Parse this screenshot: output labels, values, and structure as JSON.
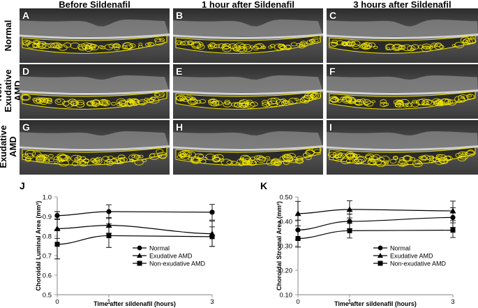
{
  "columns": [
    "Before Sildenafil",
    "1 hour after Sildenafil",
    "3 hours after Sildenafil"
  ],
  "rows": [
    "Normal",
    "Non-Exudative AMD",
    "Exudative AMD"
  ],
  "panel_letters": [
    "A",
    "B",
    "C",
    "D",
    "E",
    "F",
    "G",
    "H",
    "I"
  ],
  "colors": {
    "overlay": "#f2e600",
    "scan_background": "#1e1e1e",
    "retina_band": "#cfcfcf"
  },
  "chart_data": [
    {
      "type": "line",
      "letter": "J",
      "x": [
        0,
        1,
        3
      ],
      "xticks": [
        "0",
        "1",
        "3"
      ],
      "xlabel": "Time after sildenafil (hours)",
      "ylabel": "Choroidal Luminal Area (mm²)",
      "ylim": [
        0.5,
        1.0
      ],
      "yticks": [
        "0.5",
        "0.6",
        "0.7",
        "0.8",
        "0.9",
        "1.0"
      ],
      "legend": "center-right",
      "series": [
        {
          "name": "Normal",
          "marker": "circle",
          "values": [
            0.905,
            0.925,
            0.922
          ],
          "err": [
            0.02,
            0.035,
            0.04
          ]
        },
        {
          "name": "Exudative AMD",
          "marker": "triangle",
          "values": [
            0.838,
            0.855,
            0.812
          ],
          "err": [
            0.05,
            0.04,
            0.065
          ]
        },
        {
          "name": "Non-exudative AMD",
          "marker": "square",
          "values": [
            0.758,
            0.802,
            0.797
          ],
          "err": [
            0.075,
            0.06,
            0.05
          ]
        }
      ]
    },
    {
      "type": "line",
      "letter": "K",
      "x": [
        0,
        1,
        3
      ],
      "xticks": [
        "0",
        "1",
        "3"
      ],
      "xlabel": "Time after sildenafil (hours)",
      "ylabel": "Choroidal Stromal Area (mm²)",
      "ylim": [
        0.1,
        0.5
      ],
      "yticks": [
        "0.10",
        "0.20",
        "0.30",
        "0.40",
        "0.50"
      ],
      "legend": "center-right",
      "series": [
        {
          "name": "Normal",
          "marker": "circle",
          "values": [
            0.365,
            0.4,
            0.416
          ],
          "err": [
            0.04,
            0.03,
            0.04
          ]
        },
        {
          "name": "Exudative AMD",
          "marker": "triangle",
          "values": [
            0.432,
            0.449,
            0.443
          ],
          "err": [
            0.05,
            0.035,
            0.04
          ]
        },
        {
          "name": "Non-exudative AMD",
          "marker": "square",
          "values": [
            0.33,
            0.362,
            0.364
          ],
          "err": [
            0.035,
            0.03,
            0.03
          ]
        }
      ]
    }
  ]
}
